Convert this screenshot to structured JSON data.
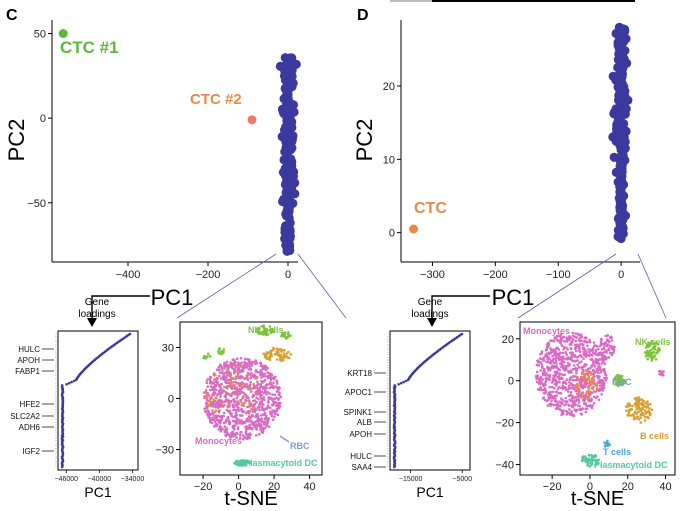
{
  "colors": {
    "navy": "#3a3a9e",
    "ctc1": "#5cb83a",
    "ctc2": "#e8884a",
    "ctc2_dot": "#f07a6a",
    "monocytes": "#d86ac4",
    "nk": "#7cc43a",
    "rbc": "#7a9ad4",
    "pdc": "#56c8a0",
    "bcell": "#d8a030",
    "tcell": "#4aa8d8",
    "orange_cluster": "#e8884a"
  },
  "panels": {
    "C": {
      "label": "C"
    },
    "D": {
      "label": "D"
    }
  },
  "chart_data": [
    {
      "id": "pca_C",
      "type": "scatter",
      "xlabel": "PC1",
      "ylabel": "PC2",
      "xlim": [
        -590,
        25
      ],
      "ylim": [
        -85,
        58
      ],
      "xticks": [
        -400,
        -200,
        0
      ],
      "yticks": [
        -50,
        0,
        50
      ],
      "points": [
        {
          "name": "CTC #1",
          "x": -562,
          "y": 50
        },
        {
          "name": "CTC #2",
          "x": -90,
          "y": -1
        }
      ],
      "annotations": [
        {
          "text": "CTC #1"
        },
        {
          "text": "CTC #2"
        }
      ],
      "dense_column": {
        "x": 0,
        "y_range": [
          -80,
          36
        ]
      }
    },
    {
      "id": "pca_D",
      "type": "scatter",
      "xlabel": "PC1",
      "ylabel": "PC2",
      "xlim": [
        -350,
        30
      ],
      "ylim": [
        -4,
        29
      ],
      "xticks": [
        -300,
        -200,
        -100,
        0
      ],
      "yticks": [
        0,
        10,
        20
      ],
      "points": [
        {
          "name": "CTC",
          "x": -330,
          "y": 0.5
        }
      ],
      "annotations": [
        {
          "text": "CTC"
        }
      ],
      "dense_column": {
        "x": 0,
        "y_range": [
          -1,
          28
        ]
      }
    },
    {
      "id": "loadings_C",
      "type": "scatter",
      "title": "Gene loadings",
      "xlabel": "PC1",
      "xticks": [
        "-46000",
        "-40000",
        "-34000"
      ],
      "xlim": [
        -47500,
        -33000
      ],
      "genes": [
        "HULC",
        "APOH",
        "FABP1",
        "HFE2",
        "SLC2A2",
        "ADH6",
        "IGF2"
      ]
    },
    {
      "id": "loadings_D",
      "type": "scatter",
      "title": "Gene loadings",
      "xlabel": "PC1",
      "xticks": [
        "-15000",
        "-5000"
      ],
      "xlim": [
        -19000,
        -3500
      ],
      "genes": [
        "KRT18",
        "APOC1",
        "SPINK1",
        "ALB",
        "APOH",
        "HULC",
        "SAA4"
      ]
    },
    {
      "id": "tsne_C",
      "type": "scatter",
      "xlabel": "t-SNE",
      "xlim": [
        -33,
        47
      ],
      "ylim": [
        -45,
        45
      ],
      "xticks": [
        -20,
        0,
        20,
        40
      ],
      "yticks": [
        -30,
        0,
        30
      ],
      "clusters": [
        {
          "name": "NK cells",
          "label": "NK cells"
        },
        {
          "name": "Monocytes",
          "label": "Monocytes"
        },
        {
          "name": "RBC",
          "label": "RBC"
        },
        {
          "name": "Plasmacytoid DC",
          "label": "Plasmacytoid DC"
        }
      ]
    },
    {
      "id": "tsne_D",
      "type": "scatter",
      "xlabel": "t-SNE",
      "xlim": [
        -37,
        45
      ],
      "ylim": [
        -45,
        28
      ],
      "xticks": [
        -20,
        0,
        20,
        40
      ],
      "yticks": [
        -40,
        -20,
        0,
        20
      ],
      "clusters": [
        {
          "name": "Monocytes",
          "label": "Monocytes"
        },
        {
          "name": "NK cells",
          "label": "NK cells"
        },
        {
          "name": "RBC",
          "label": "RBC"
        },
        {
          "name": "B cells",
          "label": "B cells"
        },
        {
          "name": "T cells",
          "label": "T cells"
        },
        {
          "name": "Plasmacytoid DC",
          "label": "Plasmacytoid DC"
        }
      ]
    }
  ]
}
